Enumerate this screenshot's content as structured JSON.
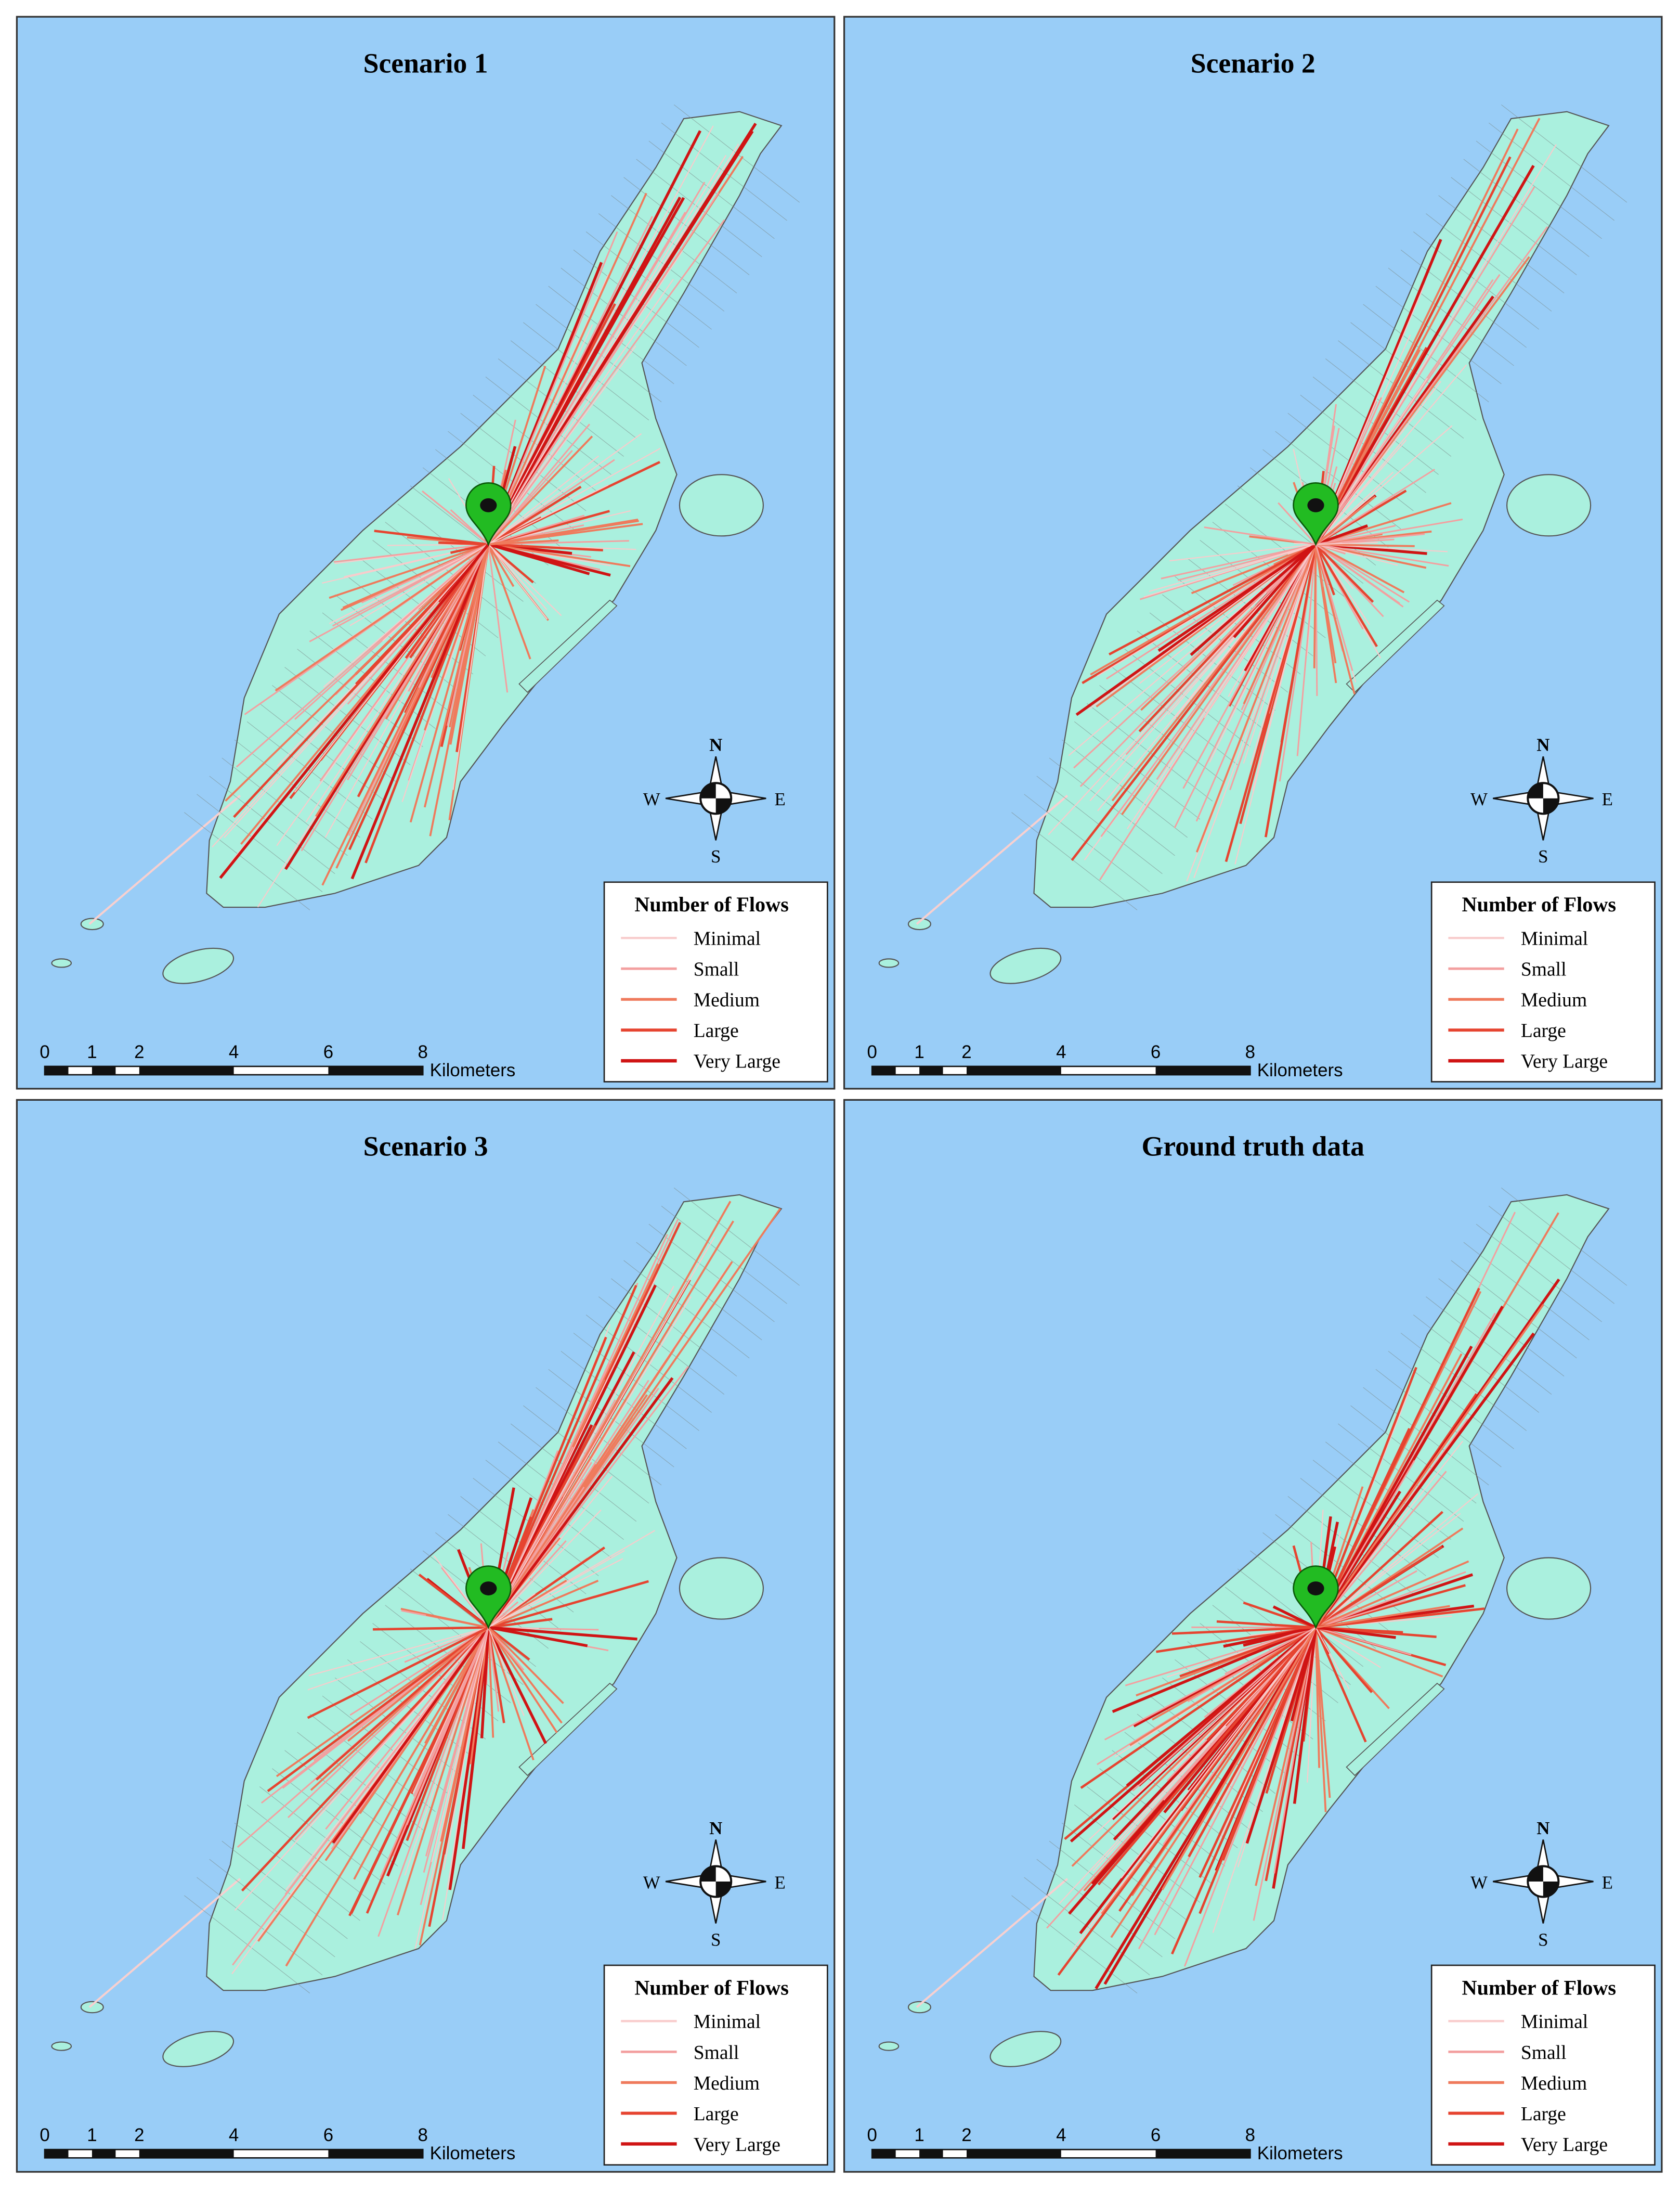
{
  "panels": [
    {
      "title": "Scenario 1",
      "legend": {
        "title": "Number of Flows",
        "items": [
          {
            "label": "Minimal",
            "color": "#f8cccc"
          },
          {
            "label": "Small",
            "color": "#f3a0a0"
          },
          {
            "label": "Medium",
            "color": "#ef7a5c"
          },
          {
            "label": "Large",
            "color": "#e64430"
          },
          {
            "label": "Very Large",
            "color": "#d01414"
          }
        ]
      },
      "scale": {
        "ticks": [
          0,
          1,
          2,
          4,
          6,
          8
        ],
        "unit": "Kilometers"
      },
      "compass": {
        "n": "N",
        "e": "E",
        "s": "S",
        "w": "W"
      }
    },
    {
      "title": "Scenario 2",
      "legend": {
        "title": "Number of Flows",
        "items": [
          {
            "label": "Minimal",
            "color": "#f8cccc"
          },
          {
            "label": "Small",
            "color": "#f3a0a0"
          },
          {
            "label": "Medium",
            "color": "#ef7a5c"
          },
          {
            "label": "Large",
            "color": "#e64430"
          },
          {
            "label": "Very Large",
            "color": "#d01414"
          }
        ]
      },
      "scale": {
        "ticks": [
          0,
          1,
          2,
          4,
          6,
          8
        ],
        "unit": "Kilometers"
      },
      "compass": {
        "n": "N",
        "e": "E",
        "s": "S",
        "w": "W"
      }
    },
    {
      "title": "Scenario 3",
      "legend": {
        "title": "Number of Flows",
        "items": [
          {
            "label": "Minimal",
            "color": "#f8cccc"
          },
          {
            "label": "Small",
            "color": "#f3a0a0"
          },
          {
            "label": "Medium",
            "color": "#ef7a5c"
          },
          {
            "label": "Large",
            "color": "#e64430"
          },
          {
            "label": "Very Large",
            "color": "#d01414"
          }
        ]
      },
      "scale": {
        "ticks": [
          0,
          1,
          2,
          4,
          6,
          8
        ],
        "unit": "Kilometers"
      },
      "compass": {
        "n": "N",
        "e": "E",
        "s": "S",
        "w": "W"
      }
    },
    {
      "title": "Ground truth data",
      "legend": {
        "title": "Number of Flows",
        "items": [
          {
            "label": "Minimal",
            "color": "#f8cccc"
          },
          {
            "label": "Small",
            "color": "#f3a0a0"
          },
          {
            "label": "Medium",
            "color": "#ef7a5c"
          },
          {
            "label": "Large",
            "color": "#e64430"
          },
          {
            "label": "Very Large",
            "color": "#d01414"
          }
        ]
      },
      "scale": {
        "ticks": [
          0,
          1,
          2,
          4,
          6,
          8
        ],
        "unit": "Kilometers"
      },
      "compass": {
        "n": "N",
        "e": "E",
        "s": "S",
        "w": "W"
      }
    }
  ]
}
